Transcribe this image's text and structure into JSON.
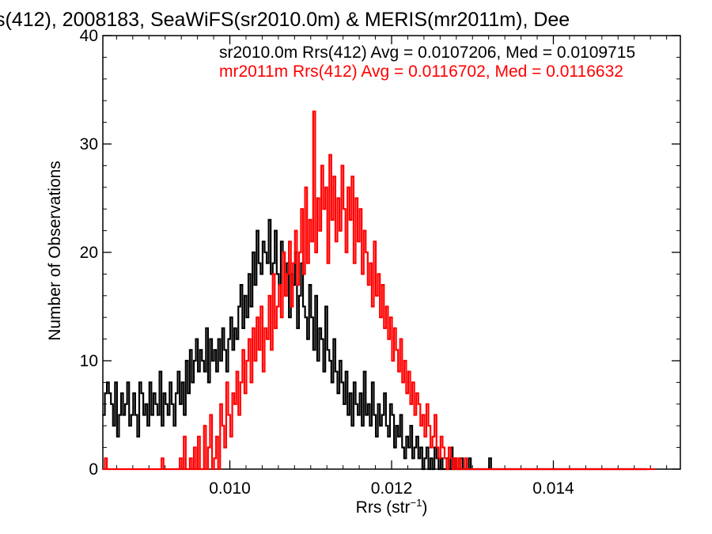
{
  "chart_data": {
    "type": "histogram",
    "title": "s(412), 2008183, SeaWiFS(sr2010.0m) & MERIS(mr2011m), Dee",
    "xlabel_main": "Rrs (str",
    "xlabel_sup": "−1",
    "xlabel_close": ")",
    "ylabel": "Number of Observations",
    "xlim": [
      0.00843,
      0.01557
    ],
    "ylim": [
      0,
      40
    ],
    "x_ticks": [
      0.01,
      0.012,
      0.014
    ],
    "x_tick_labels": [
      "0.010",
      "0.012",
      "0.014"
    ],
    "y_ticks": [
      0,
      10,
      20,
      30,
      40
    ],
    "y_tick_labels": [
      "0",
      "10",
      "20",
      "30",
      "40"
    ],
    "bin_width": 2.5e-05,
    "series": [
      {
        "name": "sr2010.0m Rrs(412) Avg = 0.0107206, Med = 0.0109715",
        "color": "#000000",
        "x_start": 0.00843,
        "values": [
          5,
          7,
          8,
          7,
          6,
          4,
          8,
          3,
          5,
          7,
          5,
          6,
          8,
          4,
          5,
          7,
          5,
          3,
          8,
          7,
          5,
          6,
          4,
          8,
          5,
          7,
          6,
          5,
          9,
          4,
          7,
          6,
          5,
          8,
          6,
          4,
          7,
          9,
          6,
          8,
          5,
          10,
          7,
          11,
          8,
          10,
          12,
          9,
          11,
          10,
          9,
          13,
          8,
          12,
          10,
          11,
          9,
          12,
          10,
          13,
          11,
          9,
          12,
          14,
          11,
          13,
          12,
          15,
          17,
          13,
          16,
          14,
          18,
          15,
          20,
          17,
          22,
          19,
          18,
          21,
          20,
          19,
          23,
          18,
          19,
          22,
          18,
          17,
          21,
          20,
          16,
          19,
          14,
          18,
          17,
          20,
          13,
          16,
          19,
          15,
          14,
          12,
          17,
          14,
          11,
          16,
          10,
          13,
          12,
          9,
          15,
          11,
          10,
          8,
          12,
          9,
          7,
          10,
          8,
          6,
          9,
          5,
          7,
          4,
          8,
          6,
          5,
          7,
          4,
          9,
          5,
          6,
          4,
          8,
          5,
          3,
          6,
          4,
          5,
          7,
          4,
          3,
          6,
          5,
          2,
          4,
          3,
          5,
          2,
          1,
          3,
          2,
          4,
          1,
          2,
          3,
          1,
          2,
          0,
          1,
          2,
          0,
          1,
          0,
          2,
          1,
          0,
          1,
          0,
          0,
          1,
          0,
          2,
          0,
          1,
          0,
          0,
          1,
          0,
          0,
          0,
          1,
          0,
          0,
          0,
          0,
          0,
          0,
          0,
          0,
          0,
          1,
          0,
          0,
          0,
          0,
          0,
          0,
          0,
          0,
          0,
          0,
          0,
          0,
          0,
          0,
          0,
          0,
          0,
          0,
          0,
          0,
          0,
          0,
          0,
          0,
          0,
          0,
          0,
          0,
          0,
          0,
          0,
          0,
          0,
          0,
          0,
          0,
          0,
          0,
          0,
          0,
          0,
          0,
          0,
          0,
          0,
          0,
          0,
          0,
          0,
          0,
          0,
          0,
          0,
          0,
          0,
          0,
          0,
          0,
          0,
          0,
          0,
          0,
          0,
          0,
          0,
          0,
          0,
          0,
          0,
          0,
          0,
          0,
          0,
          0,
          0,
          0,
          0
        ]
      },
      {
        "name": "mr2011m Rrs(412) Avg = 0.0116702, Med = 0.0116632",
        "color": "#ff0000",
        "x_start": 0.00843,
        "values": [
          0,
          1,
          0,
          0,
          0,
          0,
          0,
          0,
          0,
          0,
          0,
          0,
          0,
          0,
          0,
          0,
          0,
          0,
          0,
          0,
          0,
          0,
          0,
          0,
          0,
          0,
          0,
          0,
          0,
          1,
          0,
          0,
          0,
          0,
          0,
          0,
          0,
          0,
          1,
          0,
          3,
          0,
          0,
          1,
          0,
          2,
          0,
          3,
          0,
          0,
          4,
          0,
          2,
          5,
          0,
          1,
          3,
          0,
          6,
          4,
          2,
          8,
          5,
          3,
          7,
          6,
          9,
          5,
          8,
          11,
          7,
          10,
          12,
          8,
          13,
          10,
          14,
          11,
          15,
          9,
          13,
          12,
          16,
          11,
          18,
          13,
          15,
          17,
          14,
          20,
          16,
          18,
          21,
          15,
          19,
          22,
          17,
          20,
          24,
          18,
          26,
          19,
          23,
          21,
          33,
          20,
          25,
          22,
          28,
          24,
          26,
          19,
          29,
          23,
          27,
          21,
          25,
          22,
          28,
          24,
          20,
          26,
          23,
          27,
          19,
          25,
          21,
          24,
          18,
          22,
          20,
          17,
          19,
          15,
          21,
          16,
          18,
          14,
          17,
          13,
          15,
          12,
          14,
          10,
          13,
          11,
          9,
          12,
          8,
          10,
          7,
          9,
          6,
          8,
          5,
          7,
          6,
          4,
          5,
          3,
          6,
          4,
          2,
          3,
          5,
          2,
          1,
          3,
          2,
          1,
          0,
          2,
          1,
          0,
          1,
          0,
          1,
          0,
          0,
          1,
          0,
          0,
          0,
          0,
          0,
          0,
          0,
          0,
          0,
          0,
          0,
          0,
          0,
          0,
          0,
          0,
          0,
          0,
          0,
          0,
          0,
          0,
          0,
          0,
          0,
          0,
          0,
          0,
          0,
          0,
          0,
          0,
          0,
          0,
          0,
          0,
          0,
          0,
          0,
          0,
          0,
          0,
          0,
          0,
          0,
          0,
          0,
          0,
          0,
          0,
          0,
          0,
          0,
          0,
          0,
          0,
          0,
          0,
          0,
          0,
          0,
          0,
          0,
          0,
          0,
          0,
          0,
          0,
          0,
          0,
          0,
          0,
          0,
          0,
          0,
          0,
          0,
          0,
          0,
          0,
          0,
          0,
          0,
          0,
          0,
          0,
          0,
          0,
          0,
          0,
          0,
          0,
          0
        ]
      }
    ],
    "grid": false,
    "legend_placement": "top-right"
  }
}
